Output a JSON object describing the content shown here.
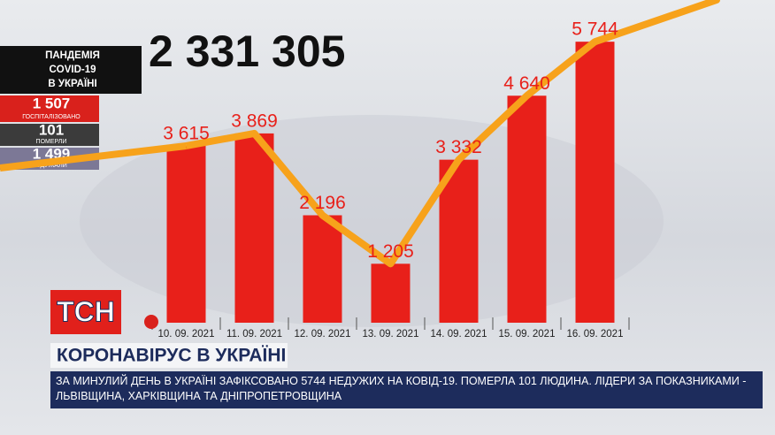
{
  "chart_data": {
    "type": "bar",
    "categories": [
      "10. 09. 2021",
      "11. 09. 2021",
      "12. 09. 2021",
      "13. 09. 2021",
      "14. 09. 2021",
      "15. 09. 2021",
      "16. 09. 2021"
    ],
    "values": [
      3615,
      3869,
      2196,
      1205,
      3332,
      4640,
      5744
    ],
    "value_labels": [
      "3 615",
      "3 869",
      "2 196",
      "1 205",
      "3 332",
      "4 640",
      "5 744"
    ],
    "color": "#e8201a",
    "line_color": "#f7a21b",
    "ylim": [
      0,
      6000
    ]
  },
  "total": "2 331 305",
  "panel": {
    "title": [
      "ПАНДЕМІЯ",
      "COVID-19",
      "В УКРАЇНІ"
    ],
    "stats": [
      {
        "value": "1 507",
        "label": "ГОСПІТАЛІЗОВАНО"
      },
      {
        "value": "101",
        "label": "ПОМЕРЛИ"
      },
      {
        "value": "1 499",
        "label": "ОДУЖАЛИ"
      }
    ]
  },
  "logo": "ТСН",
  "headline": "КОРОНАВІРУС В УКРАЇНІ",
  "ticker": "ЗА МИНУЛИЙ ДЕНЬ В УКРАЇНІ ЗАФІКСОВАНО 5744 НЕДУЖИХ НА КОВІД-19. ПОМЕРЛА 101 ЛЮДИНА. ЛІДЕРИ ЗА ПОКАЗНИКАМИ - ЛЬВІВЩИНА, ХАРКІВЩИНА ТА ДНІПРОПЕТРОВЩИНА"
}
